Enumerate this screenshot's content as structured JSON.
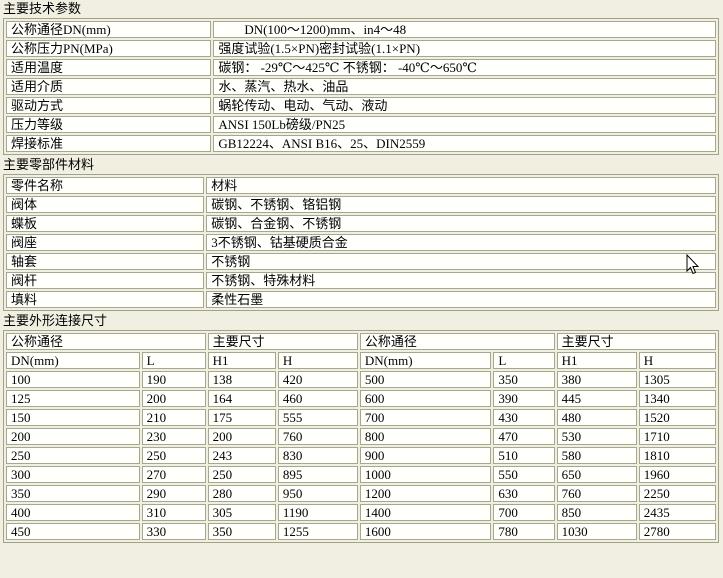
{
  "page": {
    "background": "#f1efe2",
    "border_color": "#a7a68e",
    "cell_background": "#fffffc"
  },
  "sections": {
    "tech_params": {
      "title": "主要技术参数",
      "rows": [
        {
          "label": "公称通径DN(mm)",
          "value": "DN(100～1200)mm、in4～48"
        },
        {
          "label": "公称压力PN(MPa)",
          "value": "强度试验(1.5×PN)密封试验(1.1×PN)"
        },
        {
          "label": "适用温度",
          "value": "碳钢： -29℃～425℃ 不锈钢： -40℃～650℃"
        },
        {
          "label": "适用介质",
          "value": "水、蒸汽、热水、油品"
        },
        {
          "label": "驱动方式",
          "value": "蜗轮传动、电动、气动、液动"
        },
        {
          "label": "压力等级",
          "value": "ANSI 150Lb磅级/PN25"
        },
        {
          "label": "焊接标准",
          "value": "GB12224、ANSI B16、25、DIN2559"
        }
      ]
    },
    "materials": {
      "title": "主要零部件材料",
      "rows": [
        {
          "label": "零件名称",
          "value": "材料"
        },
        {
          "label": "阀体",
          "value": "碳钢、不锈钢、铬铝钢"
        },
        {
          "label": "蝶板",
          "value": "碳钢、合金钢、不锈钢"
        },
        {
          "label": "阀座",
          "value": "3不锈钢、钴基硬质合金"
        },
        {
          "label": "轴套",
          "value": "不锈钢"
        },
        {
          "label": "阀杆",
          "value": "不锈钢、特殊材料"
        },
        {
          "label": "填料",
          "value": "柔性石墨"
        }
      ]
    },
    "dimensions": {
      "title": "主要外形连接尺寸",
      "group_headers": [
        "公称通径",
        "主要尺寸",
        "公称通径",
        "主要尺寸"
      ],
      "col_headers": [
        "DN(mm)",
        "L",
        "H1",
        "H",
        "DN(mm)",
        "L",
        "H1",
        "H"
      ],
      "rows": [
        [
          "100",
          "190",
          "138",
          "420",
          "500",
          "350",
          "380",
          "1305"
        ],
        [
          "125",
          "200",
          "164",
          "460",
          "600",
          "390",
          "445",
          "1340"
        ],
        [
          "150",
          "210",
          "175",
          "555",
          "700",
          "430",
          "480",
          "1520"
        ],
        [
          "200",
          "230",
          "200",
          "760",
          "800",
          "470",
          "530",
          "1710"
        ],
        [
          "250",
          "250",
          "243",
          "830",
          "900",
          "510",
          "580",
          "1810"
        ],
        [
          "300",
          "270",
          "250",
          "895",
          "1000",
          "550",
          "650",
          "1960"
        ],
        [
          "350",
          "290",
          "280",
          "950",
          "1200",
          "630",
          "760",
          "2250"
        ],
        [
          "400",
          "310",
          "305",
          "1190",
          "1400",
          "700",
          "850",
          "2435"
        ],
        [
          "450",
          "330",
          "350",
          "1255",
          "1600",
          "780",
          "1030",
          "2780"
        ]
      ]
    }
  },
  "cursor": {
    "type": "arrow-pointer"
  }
}
